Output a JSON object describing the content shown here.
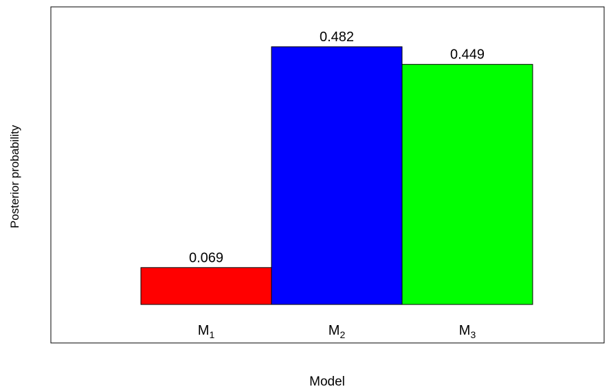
{
  "chart_data": {
    "type": "bar",
    "title": "",
    "xlabel": "Model",
    "ylabel": "Posterior probability",
    "ylim": [
      0,
      0.5
    ],
    "grid": false,
    "legend": "none",
    "categories": [
      {
        "base": "M",
        "sub": "1"
      },
      {
        "base": "M",
        "sub": "2"
      },
      {
        "base": "M",
        "sub": "3"
      }
    ],
    "values": [
      0.069,
      0.482,
      0.449
    ],
    "data_labels": [
      "0.069",
      "0.482",
      "0.449"
    ],
    "colors": [
      "#ff0000",
      "#0000ff",
      "#00ff00"
    ]
  }
}
